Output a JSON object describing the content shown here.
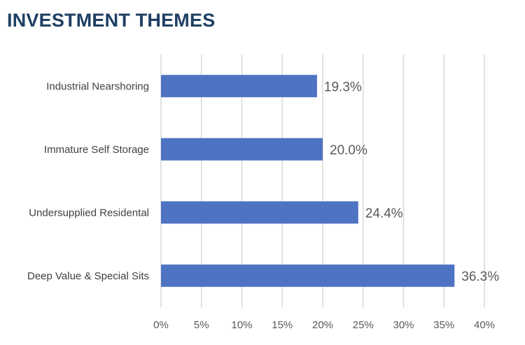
{
  "chart_data": {
    "type": "bar",
    "orientation": "horizontal",
    "title": "INVESTMENT THEMES",
    "categories": [
      "Industrial Nearshoring",
      "Immature Self Storage",
      "Undersupplied Residental",
      "Deep Value & Special Sits"
    ],
    "values": [
      19.3,
      20.0,
      24.4,
      36.3
    ],
    "data_labels": [
      "19.3%",
      "20.0%",
      "24.4%",
      "36.3%"
    ],
    "xlim": [
      0,
      40
    ],
    "x_ticks": [
      "0%",
      "5%",
      "10%",
      "15%",
      "20%",
      "25%",
      "30%",
      "35%",
      "40%"
    ],
    "xlabel": "",
    "ylabel": "",
    "grid": "vertical",
    "colors": {
      "bar": "#4f73c3",
      "title": "#1f3f63",
      "gridline": "#d9d9d9",
      "category_label": "#404040",
      "data_label": "#595959",
      "tick_label": "#595959"
    }
  }
}
